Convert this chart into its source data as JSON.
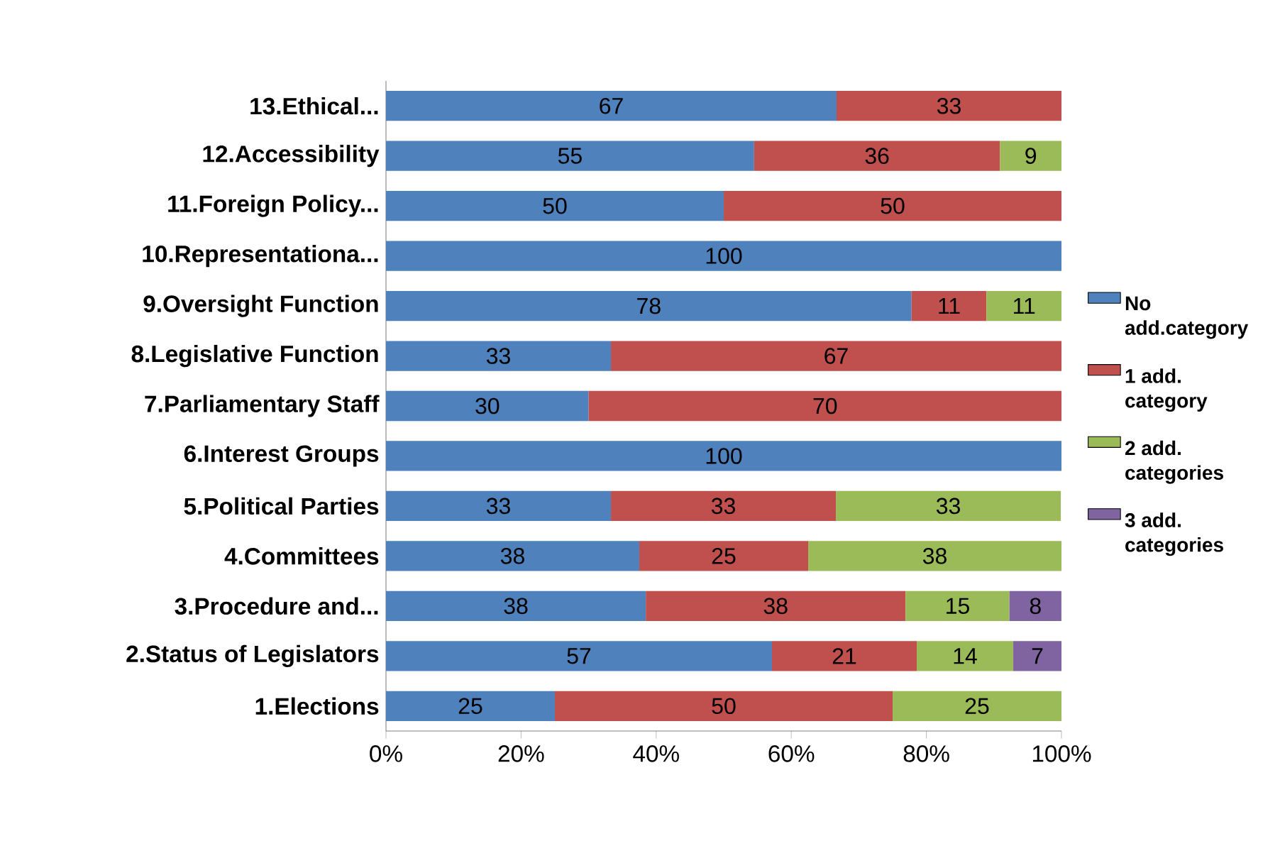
{
  "chart_data": {
    "type": "bar",
    "orientation": "horizontal",
    "stacked": true,
    "categories": [
      "13.Ethical...",
      "12.Accessibility",
      "11.Foreign Policy...",
      "10.Representationa...",
      "9.Oversight Function",
      "8.Legislative Function",
      "7.Parliamentary Staff",
      "6.Interest Groups",
      "5.Political Parties",
      "4.Committees",
      "3.Procedure and...",
      "2.Status of Legislators",
      "1.Elections"
    ],
    "series": [
      {
        "name": "No add.category",
        "color": "#4f81bd",
        "values": [
          66.7,
          54.5,
          50,
          100,
          77.8,
          33.3,
          30,
          100,
          33.3,
          37.5,
          38.46,
          57.14,
          25
        ],
        "value_labels": [
          "67",
          "55",
          "50",
          "100",
          "78",
          "33",
          "30",
          "100",
          "33",
          "38",
          "38",
          "57",
          "25"
        ]
      },
      {
        "name": "1 add. category",
        "color": "#c0504d",
        "values": [
          33.3,
          36.4,
          50,
          null,
          11.1,
          66.7,
          70,
          null,
          33.3,
          25,
          38.46,
          21.43,
          50
        ],
        "value_labels": [
          "33",
          "36",
          "50",
          null,
          "11",
          "67",
          "70",
          null,
          "33",
          "25",
          "38",
          "21",
          "50"
        ]
      },
      {
        "name": "2 add. categories",
        "color": "#9bbb59",
        "values": [
          null,
          9.1,
          null,
          null,
          11.1,
          null,
          null,
          null,
          33.3,
          37.5,
          15.38,
          14.29,
          25
        ],
        "value_labels": [
          null,
          "9",
          null,
          null,
          "11",
          null,
          null,
          null,
          "33",
          "38",
          "15",
          "14",
          "25"
        ]
      },
      {
        "name": "3 add. categories",
        "color": "#8064a2",
        "values": [
          null,
          null,
          null,
          null,
          null,
          null,
          null,
          null,
          null,
          null,
          7.69,
          7.14,
          null
        ],
        "value_labels": [
          null,
          null,
          null,
          null,
          null,
          null,
          null,
          null,
          null,
          null,
          "8",
          "7",
          null
        ]
      }
    ],
    "xlim": [
      0,
      100
    ],
    "xticks": [
      {
        "value": 0,
        "label": "0%"
      },
      {
        "value": 20,
        "label": "20%"
      },
      {
        "value": 40,
        "label": "40%"
      },
      {
        "value": 60,
        "label": "60%"
      },
      {
        "value": 80,
        "label": "80%"
      },
      {
        "value": 100,
        "label": "100%"
      }
    ],
    "legend": "right",
    "grid": false
  }
}
